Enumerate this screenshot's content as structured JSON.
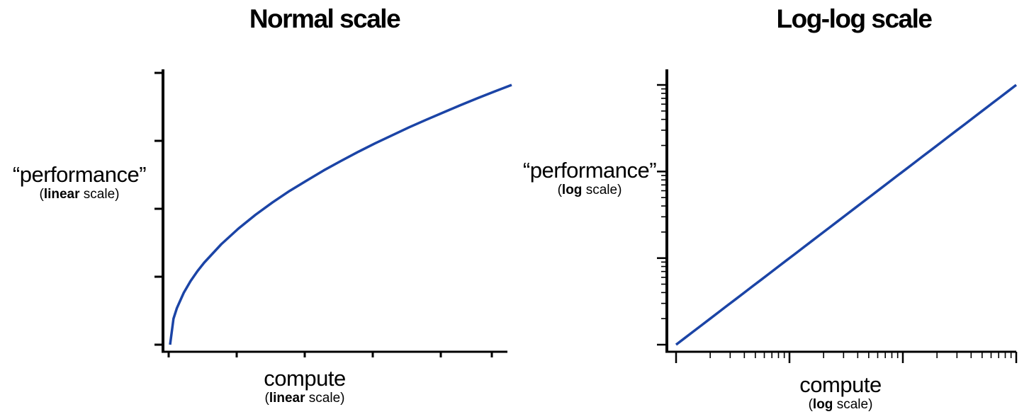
{
  "chart_data": [
    {
      "type": "line",
      "title": "Normal scale",
      "ylabel": {
        "main": "“performance”",
        "sub_bold": "linear",
        "sub_rest": " scale"
      },
      "xlabel": {
        "main": "compute",
        "sub_bold": "linear",
        "sub_rest": " scale"
      },
      "x_scale": "linear",
      "y_scale": "linear",
      "xlim": [
        0,
        1
      ],
      "ylim": [
        0,
        1
      ],
      "series": [
        {
          "color": "#1b44a6",
          "x": [
            0,
            0.01,
            0.02,
            0.04,
            0.06,
            0.08,
            0.1,
            0.15,
            0.2,
            0.25,
            0.3,
            0.35,
            0.4,
            0.45,
            0.5,
            0.55,
            0.6,
            0.65,
            0.7,
            0.75,
            0.8,
            0.85,
            0.9,
            0.95,
            1.0
          ],
          "y": [
            0,
            0.1,
            0.141,
            0.2,
            0.245,
            0.283,
            0.316,
            0.387,
            0.447,
            0.5,
            0.548,
            0.592,
            0.632,
            0.671,
            0.707,
            0.742,
            0.775,
            0.806,
            0.837,
            0.866,
            0.894,
            0.922,
            0.949,
            0.975,
            1.0
          ]
        }
      ],
      "grid": false,
      "legend": "none"
    },
    {
      "type": "line",
      "title": "Log-log scale",
      "ylabel": {
        "main": "“performance”",
        "sub_bold": "log",
        "sub_rest": " scale"
      },
      "xlabel": {
        "main": "compute",
        "sub_bold": "log",
        "sub_rest": " scale"
      },
      "x_scale": "log",
      "y_scale": "log",
      "xlim": [
        1,
        1000
      ],
      "ylim": [
        1,
        1000
      ],
      "series": [
        {
          "color": "#1b44a6",
          "x": [
            1,
            1000
          ],
          "y": [
            1,
            1000
          ]
        }
      ],
      "grid": false,
      "legend": "none"
    }
  ]
}
